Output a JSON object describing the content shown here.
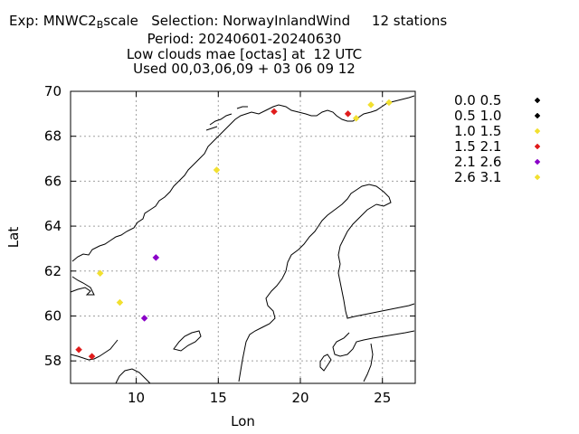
{
  "title": {
    "exp_prefix": "Exp: MNWC2",
    "exp_subscript": "B",
    "exp_suffix": "scale   Selection: NorwayInlandWind     12 stations",
    "period": "Period: 20240601-20240630",
    "variable": "Low clouds mae [octas] at  12 UTC",
    "used": "Used 00,03,06,09 + 03 06 09 12"
  },
  "chart_data": {
    "type": "scatter",
    "xlabel": "Lon",
    "ylabel": "Lat",
    "xlim": [
      6,
      27
    ],
    "ylim": [
      57,
      70
    ],
    "xticks": [
      10,
      15,
      20,
      25
    ],
    "yticks": [
      58,
      60,
      62,
      64,
      66,
      68,
      70
    ],
    "grid": true,
    "legend_position": "right",
    "classes": [
      {
        "label": "0.0 0.5",
        "color": "#000000"
      },
      {
        "label": "0.5 1.0",
        "color": "#000000"
      },
      {
        "label": "1.0 1.5",
        "color": "#f2e030"
      },
      {
        "label": "1.5 2.1",
        "color": "#e01b1b"
      },
      {
        "label": "2.1 2.6",
        "color": "#8a00c8"
      },
      {
        "label": "2.6 3.1",
        "color": "#f2e030"
      }
    ],
    "points": [
      {
        "lon": 18.4,
        "lat": 69.1,
        "class": 3
      },
      {
        "lon": 22.9,
        "lat": 69.0,
        "class": 3
      },
      {
        "lon": 23.4,
        "lat": 68.8,
        "class": 2
      },
      {
        "lon": 24.3,
        "lat": 69.4,
        "class": 2
      },
      {
        "lon": 25.4,
        "lat": 69.5,
        "class": 2
      },
      {
        "lon": 14.9,
        "lat": 66.5,
        "class": 2
      },
      {
        "lon": 11.2,
        "lat": 62.6,
        "class": 4
      },
      {
        "lon": 7.8,
        "lat": 61.9,
        "class": 2
      },
      {
        "lon": 9.0,
        "lat": 60.6,
        "class": 2
      },
      {
        "lon": 10.5,
        "lat": 59.9,
        "class": 4
      },
      {
        "lon": 6.5,
        "lat": 58.5,
        "class": 3
      },
      {
        "lon": 7.3,
        "lat": 58.2,
        "class": 3
      }
    ]
  }
}
